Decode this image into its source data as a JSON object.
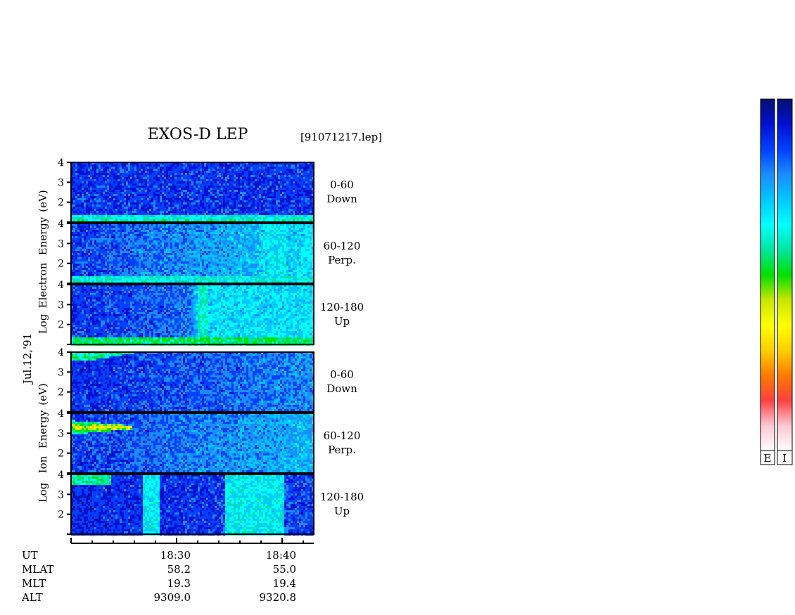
{
  "title": "EXOS-D LEP",
  "file_label": "[91071217.lep]",
  "date_label": "Jul.12,'91",
  "chart_data": [
    {
      "type": "heatmap",
      "group": "electron",
      "ylabel_lines": [
        "Log",
        "Electron",
        "Energy",
        "(eV)"
      ],
      "ylim": [
        1,
        4
      ],
      "yticks": [
        "2",
        "3",
        "4"
      ],
      "panels": [
        {
          "range": "0-60",
          "direction": "Down"
        },
        {
          "range": "60-120",
          "direction": "Perp."
        },
        {
          "range": "120-180",
          "direction": "Up"
        }
      ]
    },
    {
      "type": "heatmap",
      "group": "ion",
      "ylabel_lines": [
        "Log",
        "Ion",
        "Energy",
        "(eV)"
      ],
      "ylim": [
        1,
        4
      ],
      "yticks": [
        "2",
        "3",
        "4"
      ],
      "panels": [
        {
          "range": "0-60",
          "direction": "Down"
        },
        {
          "range": "60-120",
          "direction": "Perp."
        },
        {
          "range": "120-180",
          "direction": "Up"
        }
      ]
    }
  ],
  "time_axis": {
    "xlim": [
      "18:20",
      "18:43"
    ],
    "tick_labels": [
      "18:30",
      "18:40"
    ]
  },
  "ephemeris": [
    {
      "name": "UT",
      "values": [
        "18:30",
        "18:40"
      ]
    },
    {
      "name": "MLAT",
      "values": [
        "58.2",
        "55.0"
      ]
    },
    {
      "name": "MLT",
      "values": [
        "19.3",
        "19.4"
      ]
    },
    {
      "name": "ALT",
      "values": [
        "9309.0",
        "9320.8"
      ]
    }
  ],
  "colorbars": [
    {
      "label": "E"
    },
    {
      "label": "I"
    }
  ],
  "colormap": [
    "#ffffff",
    "#ffc8d2",
    "#ff4040",
    "#ff7a00",
    "#ffd000",
    "#ffff00",
    "#c8e600",
    "#00e000",
    "#00e6a0",
    "#00ffff",
    "#00c8ff",
    "#1a8cff",
    "#0040ff",
    "#0010d0",
    "#001070"
  ]
}
